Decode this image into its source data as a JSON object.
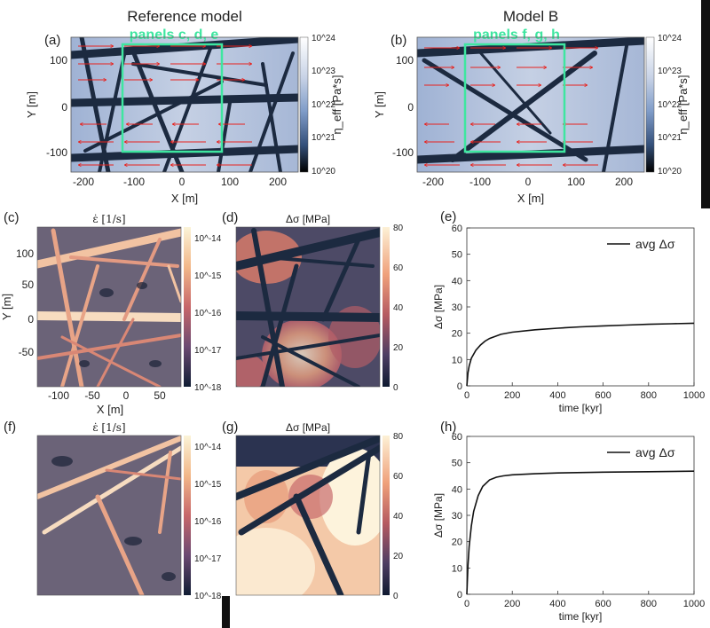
{
  "top": [
    {
      "id": "a",
      "letter": "(a)",
      "title": "Reference model",
      "box_label": "panels c, d, e",
      "xlabel": "X [m]",
      "ylabel": "Y [m]",
      "xticks": [
        "-200",
        "-100",
        "0",
        "100",
        "200"
      ],
      "yticks": [
        "100",
        "0",
        "-100"
      ],
      "cbar_label": "η_eff [Pa*s]",
      "cbar_ticks": [
        "10^24",
        "10^23",
        "10^22",
        "10^21",
        "10^20"
      ]
    },
    {
      "id": "b",
      "letter": "(b)",
      "title": "Model B",
      "box_label": "panels f, g, h",
      "xlabel": "X [m]",
      "ylabel": "Y [m]",
      "xticks": [
        "-200",
        "-100",
        "0",
        "100",
        "200"
      ],
      "yticks": [
        "100",
        "0",
        "-100"
      ],
      "cbar_label": "η_eff [Pa*s]",
      "cbar_ticks": [
        "10^24",
        "10^23",
        "10^22",
        "10^21",
        "10^20"
      ]
    }
  ],
  "maps": [
    {
      "id": "c",
      "letter": "(c)",
      "title": "ε̇ [1/s]",
      "cbar_ticks": [
        "10^-14",
        "10^-15",
        "10^-16",
        "10^-17",
        "10^-18"
      ],
      "xlabel": "X [m]",
      "ylabel": "Y [m]",
      "xticks": [
        "-100",
        "-50",
        "0",
        "50"
      ],
      "yticks": [
        "100",
        "50",
        "0",
        "-50"
      ]
    },
    {
      "id": "d",
      "letter": "(d)",
      "title": "Δσ [MPa]",
      "cbar_ticks": [
        "80",
        "60",
        "40",
        "20",
        "0"
      ]
    },
    {
      "id": "f",
      "letter": "(f)",
      "title": "ε̇ [1/s]",
      "cbar_ticks": [
        "10^-14",
        "10^-15",
        "10^-16",
        "10^-17",
        "10^-18"
      ]
    },
    {
      "id": "g",
      "letter": "(g)",
      "title": "Δσ [MPa]",
      "cbar_ticks": [
        "80",
        "60",
        "40",
        "20",
        "0"
      ]
    }
  ],
  "chart_data": [
    {
      "panel": "(e)",
      "type": "line",
      "xlabel": "time [kyr]",
      "ylabel": "Δσ [MPa]",
      "xlim": [
        0,
        1000
      ],
      "ylim": [
        0,
        60
      ],
      "xticks": [
        "0",
        "200",
        "400",
        "600",
        "800",
        "1000"
      ],
      "yticks": [
        "0",
        "10",
        "20",
        "30",
        "40",
        "50",
        "60"
      ],
      "legend": "top-right",
      "series": [
        {
          "name": "avg Δσ",
          "x": [
            0,
            5,
            10,
            20,
            40,
            60,
            80,
            100,
            150,
            200,
            300,
            400,
            500,
            600,
            700,
            800,
            900,
            1000
          ],
          "y": [
            0,
            5,
            7.5,
            10.5,
            13.5,
            15.5,
            17,
            18,
            19.6,
            20.4,
            21.3,
            21.9,
            22.4,
            22.8,
            23.1,
            23.4,
            23.6,
            23.8
          ]
        }
      ]
    },
    {
      "panel": "(h)",
      "type": "line",
      "xlabel": "time [kyr]",
      "ylabel": "Δσ [MPa]",
      "xlim": [
        0,
        1000
      ],
      "ylim": [
        0,
        60
      ],
      "xticks": [
        "0",
        "200",
        "400",
        "600",
        "800",
        "1000"
      ],
      "yticks": [
        "0",
        "10",
        "20",
        "30",
        "40",
        "50",
        "60"
      ],
      "legend": "top-right",
      "series": [
        {
          "name": "avg Δσ",
          "x": [
            0,
            5,
            10,
            20,
            30,
            50,
            70,
            100,
            130,
            160,
            200,
            300,
            400,
            600,
            800,
            1000
          ],
          "y": [
            0,
            11,
            18,
            26,
            31.5,
            37.5,
            41,
            43.5,
            44.5,
            45,
            45.4,
            45.8,
            46.1,
            46.4,
            46.6,
            46.8
          ]
        }
      ]
    }
  ],
  "colors": {
    "box": "#3ee6a0",
    "arrow": "#e8211d",
    "fault": "#1c2a40",
    "curve": "#111111"
  }
}
